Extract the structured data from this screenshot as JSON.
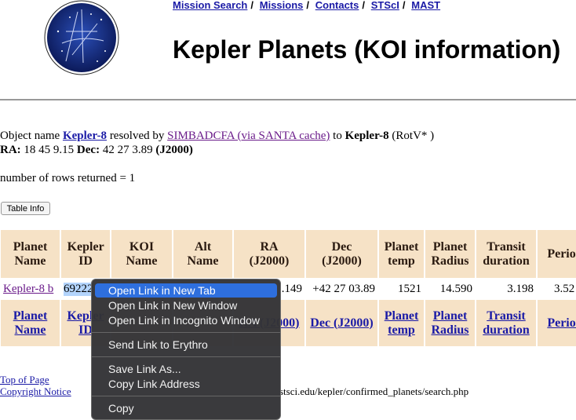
{
  "nav": {
    "links": [
      "Mission Search",
      "Missions",
      "Contacts",
      "STScI",
      "MAST"
    ],
    "separator": "/"
  },
  "header": {
    "title": "Kepler Planets (KOI information)"
  },
  "resolve": {
    "prefix": "Object name",
    "object_link": "Kepler-8",
    "middle": "resolved by",
    "service_link": "SIMBADCFA (via SANTA cache)",
    "to": "to",
    "resolved_name": "Kepler-8",
    "type": "(RotV* )"
  },
  "coords": {
    "ra_label": "RA:",
    "ra": "18 45 9.15",
    "dec_label": "Dec:",
    "dec": "42 27 3.89",
    "epoch": "(J2000)"
  },
  "rows_returned": "number of rows returned = 1",
  "table_info_button": "Table Info",
  "table": {
    "header": [
      "Planet Name",
      "Kepler ID",
      "KOI Name",
      "Alt Name",
      "RA (J2000)",
      "Dec (J2000)",
      "Planet temp",
      "Planet Radius",
      "Transit duration",
      "Period"
    ],
    "rows": [
      [
        "Kepler-8 b",
        "69222",
        "",
        "",
        ".149",
        "+42 27 03.89",
        "1521",
        "14.590",
        "3.198",
        "3.52"
      ]
    ],
    "footer": [
      "Planet Name",
      "Kepler ID",
      "",
      "",
      "RA (J2000)",
      "Dec (J2000)",
      "Planet temp",
      "Planet Radius",
      "Transit duration",
      "Period"
    ]
  },
  "footer_links": [
    "Top of Page",
    "Copyright Notice"
  ],
  "url_fragment": "stsci.edu/kepler/confirmed_planets/search.php",
  "context_menu": {
    "items": [
      "Open Link in New Tab",
      "Open Link in New Window",
      "Open Link in Incognito Window",
      "Send Link to Erythro",
      "Save Link As...",
      "Copy Link Address",
      "Copy"
    ]
  }
}
